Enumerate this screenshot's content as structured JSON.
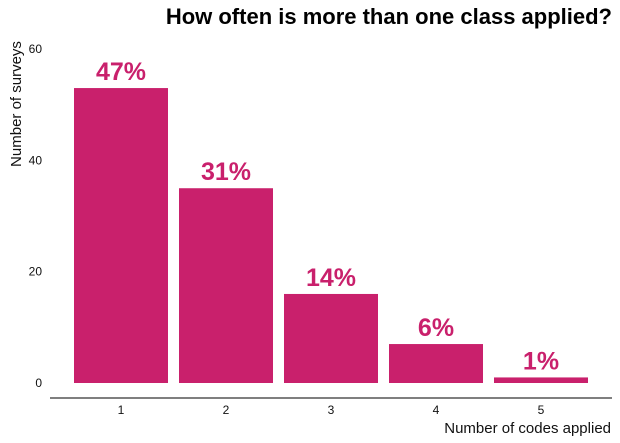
{
  "chart_data": {
    "type": "bar",
    "title": "How often is more than one class applied?",
    "xlabel": "Number of codes applied",
    "ylabel": "Number of surveys",
    "categories": [
      "1",
      "2",
      "3",
      "4",
      "5"
    ],
    "values": [
      53,
      35,
      16,
      7,
      1
    ],
    "data_labels": [
      "47%",
      "31%",
      "14%",
      "6%",
      "1%"
    ],
    "yticks": [
      0,
      20,
      40,
      60
    ],
    "ylim": [
      0,
      62
    ],
    "grid": false,
    "bar_color": "#c9206c",
    "label_color": "#c9206c"
  }
}
